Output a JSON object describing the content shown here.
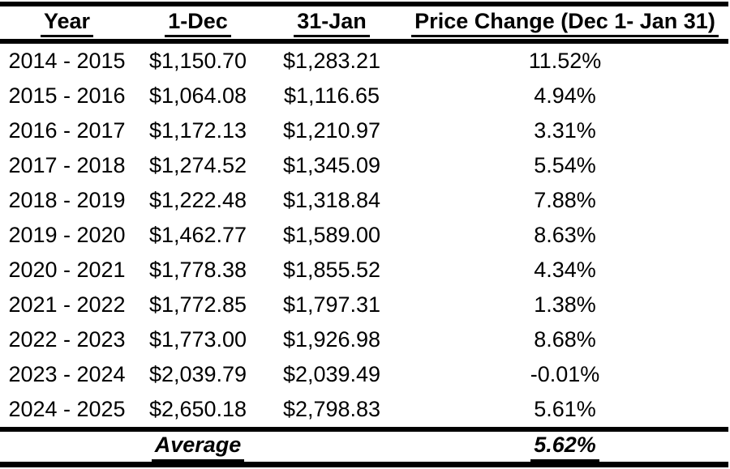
{
  "meta": {
    "background_color": "#ffffff",
    "text_color": "#000000",
    "rule_color": "#000000"
  },
  "chart_data": {
    "type": "table",
    "title": "",
    "columns": [
      "Year",
      "1-Dec",
      "31-Jan",
      "Price Change (Dec 1- Jan 31)"
    ],
    "rows": [
      {
        "year": "2014 - 2015",
        "dec1": "$1,150.70",
        "jan31": "$1,283.21",
        "change": "11.52%"
      },
      {
        "year": "2015 - 2016",
        "dec1": "$1,064.08",
        "jan31": "$1,116.65",
        "change": "4.94%"
      },
      {
        "year": "2016 - 2017",
        "dec1": "$1,172.13",
        "jan31": "$1,210.97",
        "change": "3.31%"
      },
      {
        "year": "2017 - 2018",
        "dec1": "$1,274.52",
        "jan31": "$1,345.09",
        "change": "5.54%"
      },
      {
        "year": "2018 - 2019",
        "dec1": "$1,222.48",
        "jan31": "$1,318.84",
        "change": "7.88%"
      },
      {
        "year": "2019 - 2020",
        "dec1": "$1,462.77",
        "jan31": "$1,589.00",
        "change": "8.63%"
      },
      {
        "year": "2020 - 2021",
        "dec1": "$1,778.38",
        "jan31": "$1,855.52",
        "change": "4.34%"
      },
      {
        "year": "2021 - 2022",
        "dec1": "$1,772.85",
        "jan31": "$1,797.31",
        "change": "1.38%"
      },
      {
        "year": "2022 - 2023",
        "dec1": "$1,773.00",
        "jan31": "$1,926.98",
        "change": "8.68%"
      },
      {
        "year": "2023 - 2024",
        "dec1": "$2,039.79",
        "jan31": "$2,039.49",
        "change": "-0.01%"
      },
      {
        "year": "2024 - 2025",
        "dec1": "$2,650.18",
        "jan31": "$2,798.83",
        "change": "5.61%"
      }
    ],
    "footer": {
      "label": "Average",
      "value": "5.62%"
    }
  }
}
